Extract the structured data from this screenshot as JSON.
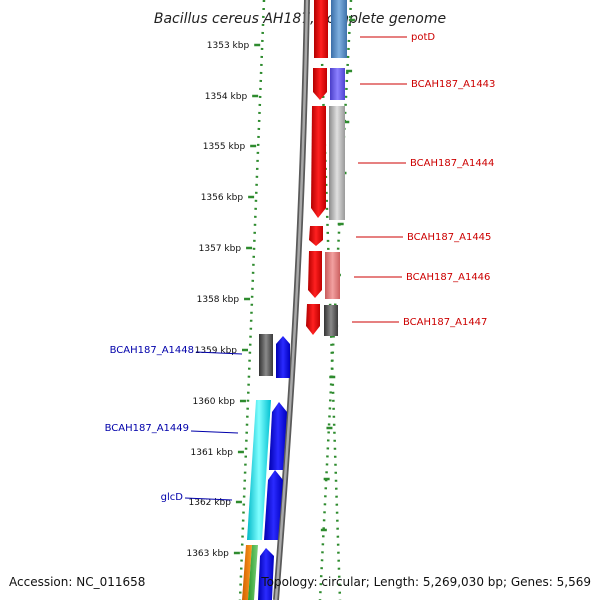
{
  "header": {
    "title": "Bacillus cereus AH187, complete genome"
  },
  "footer": {
    "accession": "Accession: NC_011658",
    "summary": "Topology: circular; Length: 5,269,030 bp; Genes: 5,569"
  },
  "ruler": {
    "labels": [
      "1353 kbp",
      "1354 kbp",
      "1355 kbp",
      "1356 kbp",
      "1357 kbp",
      "1358 kbp",
      "1359 kbp",
      "1360 kbp",
      "1361 kbp",
      "1362 kbp",
      "1363 kbp"
    ]
  },
  "genes_right": [
    {
      "name": "potD",
      "color": "#cc0000"
    },
    {
      "name": "BCAH187_A1443",
      "color": "#cc0000"
    },
    {
      "name": "BCAH187_A1444",
      "color": "#cc0000"
    },
    {
      "name": "BCAH187_A1445",
      "color": "#cc0000"
    },
    {
      "name": "BCAH187_A1446",
      "color": "#cc0000"
    },
    {
      "name": "BCAH187_A1447",
      "color": "#cc0000"
    }
  ],
  "genes_left": [
    {
      "name": "BCAH187_A1448",
      "color": "#0000aa"
    },
    {
      "name": "BCAH187_A1449",
      "color": "#0000aa"
    },
    {
      "name": "glcD",
      "color": "#0000aa"
    }
  ],
  "colors": {
    "backbone": "#808080",
    "tick": "#2e8b2e",
    "forward_strand": "#ff0000",
    "reverse_strand": "#0000ff"
  }
}
